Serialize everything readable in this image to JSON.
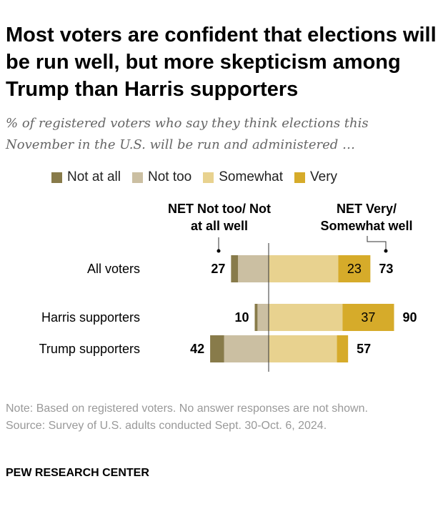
{
  "title": "Most voters are confident that elections will be run well, but more skepticism among Trump than Harris supporters",
  "subtitle": "% of registered voters who say they think elections this November in the U.S. will be run and administered …",
  "legend": [
    {
      "label": "Not at all",
      "color": "#887b4a"
    },
    {
      "label": "Not too",
      "color": "#cbbfa2"
    },
    {
      "label": "Somewhat",
      "color": "#e8d28f"
    },
    {
      "label": "Very",
      "color": "#d6ab2a"
    }
  ],
  "net_labels": {
    "left": "NET Not too/ Not at all well",
    "right": "NET Very/ Somewhat well"
  },
  "chart_data": {
    "type": "bar",
    "orientation": "horizontal-diverging",
    "categories": [
      "All voters",
      "Harris supporters",
      "Trump supporters"
    ],
    "series": [
      {
        "name": "Not at all",
        "values": [
          5,
          2,
          10
        ]
      },
      {
        "name": "Not too",
        "values": [
          22,
          8,
          32
        ]
      },
      {
        "name": "Somewhat",
        "values": [
          50,
          53,
          49
        ]
      },
      {
        "name": "Very",
        "values": [
          23,
          37,
          8
        ]
      }
    ],
    "net_negative": [
      27,
      10,
      42
    ],
    "net_positive": [
      73,
      90,
      57
    ],
    "value_labels_shown": {
      "Very": [
        23,
        37,
        null
      ]
    }
  },
  "notes": {
    "note": "Note: Based on registered voters. No answer responses are not shown.",
    "source": "Source: Survey of U.S. adults conducted Sept. 30-Oct. 6, 2024."
  },
  "brand": "PEW RESEARCH CENTER"
}
